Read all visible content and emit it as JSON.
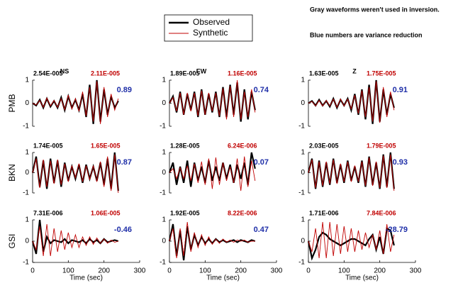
{
  "header": {
    "note": "Gray waveforms weren't used in inversion.",
    "legend_note": "Blue numbers are variance reduction"
  },
  "row_labels": [
    "PMB",
    "BKN",
    "GSI"
  ],
  "column_labels": [
    "NS",
    "EW",
    "Z"
  ],
  "chart_data": [
    {
      "type": "line",
      "observed_amp": "2.54E-005",
      "synthetic_amp": "2.11E-005",
      "variance_reduction": 0.89,
      "xlim": [
        0,
        300
      ],
      "ylim": [
        -1,
        1
      ],
      "yticks": [
        -1,
        0,
        1
      ],
      "x": [
        0,
        10,
        20,
        30,
        40,
        50,
        60,
        70,
        80,
        90,
        100,
        110,
        120,
        130,
        140,
        150,
        160,
        170,
        180,
        190,
        200,
        210,
        220,
        230,
        240
      ],
      "series": [
        {
          "name": "Observed",
          "color": "#000000",
          "values": [
            0,
            -0.1,
            0.15,
            -0.2,
            0.2,
            -0.15,
            0.1,
            -0.2,
            0.25,
            -0.3,
            0.3,
            -0.2,
            0.15,
            -0.3,
            0.4,
            -0.6,
            0.8,
            -0.9,
            1.0,
            -0.8,
            0.6,
            -0.5,
            0.3,
            -0.2,
            0.1
          ]
        },
        {
          "name": "Synthetic",
          "color": "#c00000",
          "values": [
            0,
            -0.08,
            0.12,
            -0.18,
            0.22,
            -0.12,
            0.12,
            -0.18,
            0.2,
            -0.28,
            0.35,
            -0.25,
            0.2,
            -0.35,
            0.5,
            -0.55,
            0.7,
            -0.8,
            0.95,
            -0.9,
            0.7,
            -0.6,
            0.4,
            -0.3,
            0.2
          ]
        }
      ]
    },
    {
      "type": "line",
      "observed_amp": "1.89E-005",
      "synthetic_amp": "1.16E-005",
      "variance_reduction": 0.74,
      "xlim": [
        0,
        300
      ],
      "ylim": [
        -1,
        1
      ],
      "yticks": [
        -1,
        0,
        1
      ],
      "x": [
        0,
        10,
        20,
        30,
        40,
        50,
        60,
        70,
        80,
        90,
        100,
        110,
        120,
        130,
        140,
        150,
        160,
        170,
        180,
        190,
        200,
        210,
        220,
        230,
        240
      ],
      "series": [
        {
          "color": "#000000",
          "values": [
            0,
            0.3,
            -0.4,
            0.5,
            -0.5,
            0.4,
            -0.3,
            0.5,
            -0.6,
            0.6,
            -0.5,
            0.4,
            -0.4,
            0.5,
            -0.6,
            0.7,
            -0.6,
            0.8,
            -0.5,
            0.9,
            -0.8,
            0.6,
            -0.7,
            0.5,
            -0.3
          ]
        },
        {
          "color": "#c00000",
          "values": [
            0,
            0.25,
            -0.35,
            0.45,
            -0.5,
            0.45,
            -0.35,
            0.45,
            -0.55,
            0.55,
            -0.5,
            0.45,
            -0.35,
            0.45,
            -0.55,
            0.65,
            -0.7,
            0.75,
            -0.6,
            1.0,
            -0.7,
            0.5,
            -0.6,
            0.6,
            -0.4
          ]
        }
      ]
    },
    {
      "type": "line",
      "observed_amp": "1.63E-005",
      "synthetic_amp": "1.75E-005",
      "variance_reduction": 0.91,
      "xlim": [
        0,
        300
      ],
      "ylim": [
        -1,
        1
      ],
      "yticks": [
        -1,
        0,
        1
      ],
      "x": [
        0,
        10,
        20,
        30,
        40,
        50,
        60,
        70,
        80,
        90,
        100,
        110,
        120,
        130,
        140,
        150,
        160,
        170,
        180,
        190,
        200,
        210,
        220,
        230,
        240
      ],
      "series": [
        {
          "color": "#000000",
          "values": [
            0,
            0.1,
            -0.1,
            0.15,
            -0.1,
            0.1,
            -0.15,
            0.2,
            -0.2,
            0.15,
            -0.1,
            0.2,
            -0.3,
            0.4,
            -0.5,
            0.6,
            -0.7,
            0.8,
            -0.9,
            1.0,
            -0.8,
            0.6,
            -0.5,
            0.4,
            -0.2
          ]
        },
        {
          "color": "#c00000",
          "values": [
            0,
            0.08,
            -0.12,
            0.12,
            -0.12,
            0.12,
            -0.12,
            0.18,
            -0.18,
            0.18,
            -0.12,
            0.18,
            -0.25,
            0.35,
            -0.45,
            0.55,
            -0.6,
            0.7,
            -0.8,
            0.95,
            -0.85,
            0.7,
            -0.6,
            0.5,
            -0.3
          ]
        }
      ]
    },
    {
      "type": "line",
      "observed_amp": "1.74E-005",
      "synthetic_amp": "1.65E-005",
      "variance_reduction": 0.87,
      "xlim": [
        0,
        300
      ],
      "ylim": [
        -1,
        1
      ],
      "yticks": [
        -1,
        0,
        1
      ],
      "x": [
        0,
        10,
        20,
        30,
        40,
        50,
        60,
        70,
        80,
        90,
        100,
        110,
        120,
        130,
        140,
        150,
        160,
        170,
        180,
        190,
        200,
        210,
        220,
        230,
        240
      ],
      "series": [
        {
          "color": "#000000",
          "values": [
            0,
            0.8,
            -0.7,
            0.6,
            -0.8,
            0.7,
            -0.5,
            0.6,
            -0.7,
            0.5,
            -0.4,
            0.3,
            -0.3,
            0.4,
            -0.5,
            0.4,
            -0.3,
            0.3,
            -0.4,
            0.5,
            -0.6,
            0.7,
            -0.8,
            1.0,
            -0.9
          ]
        },
        {
          "color": "#c00000",
          "values": [
            0,
            0.7,
            -0.75,
            0.65,
            -0.7,
            0.6,
            -0.55,
            0.65,
            -0.6,
            0.45,
            -0.45,
            0.35,
            -0.25,
            0.45,
            -0.45,
            0.35,
            -0.35,
            0.35,
            -0.45,
            0.55,
            -0.7,
            0.8,
            -0.9,
            0.9,
            -1.0
          ]
        }
      ]
    },
    {
      "type": "line",
      "observed_amp": "1.28E-005",
      "synthetic_amp": "6.24E-006",
      "variance_reduction": 0.07,
      "xlim": [
        0,
        300
      ],
      "ylim": [
        -1,
        1
      ],
      "yticks": [
        -1,
        0,
        1
      ],
      "x": [
        0,
        10,
        20,
        30,
        40,
        50,
        60,
        70,
        80,
        90,
        100,
        110,
        120,
        130,
        140,
        150,
        160,
        170,
        180,
        190,
        200,
        210,
        220,
        230,
        240
      ],
      "series": [
        {
          "color": "#000000",
          "values": [
            0,
            0.5,
            -0.6,
            0.3,
            -0.5,
            0.6,
            -0.7,
            0.5,
            -0.4,
            0.3,
            -0.5,
            0.6,
            -0.4,
            0.3,
            -0.4,
            0.5,
            -0.3,
            0.4,
            -0.5,
            0.4,
            -0.3,
            0.5,
            -0.6,
            1.0,
            0.2
          ]
        },
        {
          "color": "#c00000",
          "values": [
            0,
            0.2,
            -0.3,
            0.25,
            -0.3,
            0.35,
            -0.4,
            0.45,
            -0.5,
            0.55,
            -0.6,
            0.7,
            -0.8,
            0.75,
            -0.6,
            0.5,
            -0.4,
            0.3,
            -0.5,
            0.7,
            -0.9,
            0.8,
            -0.7,
            0.6,
            -0.4
          ]
        }
      ]
    },
    {
      "type": "line",
      "observed_amp": "2.03E-005",
      "synthetic_amp": "1.79E-005",
      "variance_reduction": 0.93,
      "xlim": [
        0,
        300
      ],
      "ylim": [
        -1,
        1
      ],
      "yticks": [
        -1,
        0,
        1
      ],
      "x": [
        0,
        10,
        20,
        30,
        40,
        50,
        60,
        70,
        80,
        90,
        100,
        110,
        120,
        130,
        140,
        150,
        160,
        170,
        180,
        190,
        200,
        210,
        220,
        230,
        240
      ],
      "series": [
        {
          "color": "#000000",
          "values": [
            0,
            0.7,
            -0.8,
            0.6,
            -0.7,
            0.5,
            -0.6,
            0.7,
            -0.5,
            0.4,
            -0.5,
            0.6,
            -0.4,
            0.3,
            -0.5,
            0.6,
            -0.7,
            0.8,
            -0.6,
            0.5,
            -0.8,
            0.9,
            -0.7,
            1.0,
            -0.8
          ]
        },
        {
          "color": "#c00000",
          "values": [
            0,
            0.65,
            -0.75,
            0.55,
            -0.65,
            0.55,
            -0.55,
            0.65,
            -0.55,
            0.45,
            -0.45,
            0.55,
            -0.45,
            0.35,
            -0.45,
            0.55,
            -0.65,
            0.75,
            -0.65,
            0.55,
            -0.75,
            0.85,
            -0.75,
            0.9,
            -0.9
          ]
        }
      ]
    },
    {
      "type": "line",
      "observed_amp": "7.31E-006",
      "synthetic_amp": "1.06E-005",
      "variance_reduction": -0.46,
      "xlim": [
        0,
        300
      ],
      "xticks": [
        0,
        100,
        200,
        300
      ],
      "xlabel": "Time (sec)",
      "ylim": [
        -1,
        1
      ],
      "yticks": [
        -1,
        0,
        1
      ],
      "x": [
        0,
        10,
        20,
        30,
        40,
        50,
        60,
        70,
        80,
        90,
        100,
        110,
        120,
        130,
        140,
        150,
        160,
        170,
        180,
        190,
        200,
        210,
        220,
        230,
        240
      ],
      "series": [
        {
          "color": "#000000",
          "values": [
            0,
            -0.6,
            1.0,
            -0.5,
            0.2,
            -0.1,
            0.05,
            0.0,
            -0.05,
            0.1,
            -0.1,
            0.05,
            0.0,
            -0.05,
            0.05,
            -0.1,
            0.1,
            -0.05,
            0.05,
            -0.1,
            0.1,
            -0.05,
            0.0,
            0.05,
            0.0
          ]
        },
        {
          "color": "#c00000",
          "values": [
            0,
            -0.4,
            0.7,
            -0.7,
            0.8,
            -0.7,
            0.6,
            -0.5,
            0.5,
            -0.4,
            0.4,
            -0.3,
            0.3,
            -0.3,
            0.2,
            -0.2,
            0.2,
            -0.15,
            0.15,
            -0.1,
            0.1,
            -0.1,
            0.05,
            -0.05,
            0.0
          ]
        }
      ]
    },
    {
      "type": "line",
      "observed_amp": "1.92E-005",
      "synthetic_amp": "8.22E-006",
      "variance_reduction": 0.47,
      "xlim": [
        0,
        300
      ],
      "xticks": [
        0,
        100,
        200,
        300
      ],
      "xlabel": "Time (sec)",
      "ylim": [
        -1,
        1
      ],
      "yticks": [
        -1,
        0,
        1
      ],
      "x": [
        0,
        10,
        20,
        30,
        40,
        50,
        60,
        70,
        80,
        90,
        100,
        110,
        120,
        130,
        140,
        150,
        160,
        170,
        180,
        190,
        200,
        210,
        220,
        230,
        240
      ],
      "series": [
        {
          "color": "#000000",
          "values": [
            0,
            0.8,
            -0.7,
            0.5,
            -0.9,
            0.7,
            -0.4,
            0.3,
            -0.2,
            0.2,
            -0.1,
            0.1,
            -0.1,
            0.1,
            -0.05,
            0.05,
            -0.05,
            0.0,
            0.05,
            -0.05,
            0.05,
            0.0,
            -0.05,
            0.05,
            0.0
          ]
        },
        {
          "color": "#c00000",
          "values": [
            0,
            0.6,
            -0.8,
            0.6,
            -0.7,
            0.9,
            -0.5,
            0.4,
            -0.3,
            0.3,
            -0.2,
            0.2,
            -0.15,
            0.1,
            -0.1,
            0.1,
            -0.05,
            0.05,
            -0.05,
            0.05,
            0.0,
            0.05,
            -0.05,
            0.0,
            0.0
          ]
        }
      ]
    },
    {
      "type": "line",
      "observed_amp": "1.71E-006",
      "synthetic_amp": "7.84E-006",
      "variance_reduction": -28.79,
      "xlim": [
        0,
        300
      ],
      "xticks": [
        0,
        100,
        200,
        300
      ],
      "xlabel": "Time (sec)",
      "ylim": [
        -1,
        1
      ],
      "yticks": [
        -1,
        0,
        1
      ],
      "x": [
        0,
        10,
        20,
        30,
        40,
        50,
        60,
        70,
        80,
        90,
        100,
        110,
        120,
        130,
        140,
        150,
        160,
        170,
        180,
        190,
        200,
        210,
        220,
        230,
        240
      ],
      "series": [
        {
          "color": "#000000",
          "values": [
            0,
            -0.8,
            -0.4,
            0.2,
            0.4,
            0.3,
            0.1,
            0.0,
            -0.1,
            -0.2,
            -0.1,
            0.0,
            0.1,
            0.1,
            0.0,
            -0.1,
            -0.2,
            0.1,
            0.3,
            -0.4,
            0.2,
            -0.6,
            0.6,
            0.5,
            -0.2
          ]
        },
        {
          "color": "#c00000",
          "values": [
            0,
            -0.5,
            0.6,
            -0.8,
            0.9,
            -0.8,
            0.9,
            -0.7,
            0.8,
            -0.6,
            0.7,
            -0.5,
            0.6,
            -0.5,
            0.5,
            -0.4,
            0.4,
            -0.3,
            0.3,
            -0.4,
            0.5,
            -0.6,
            0.8,
            -0.5,
            0.3
          ]
        }
      ]
    }
  ]
}
